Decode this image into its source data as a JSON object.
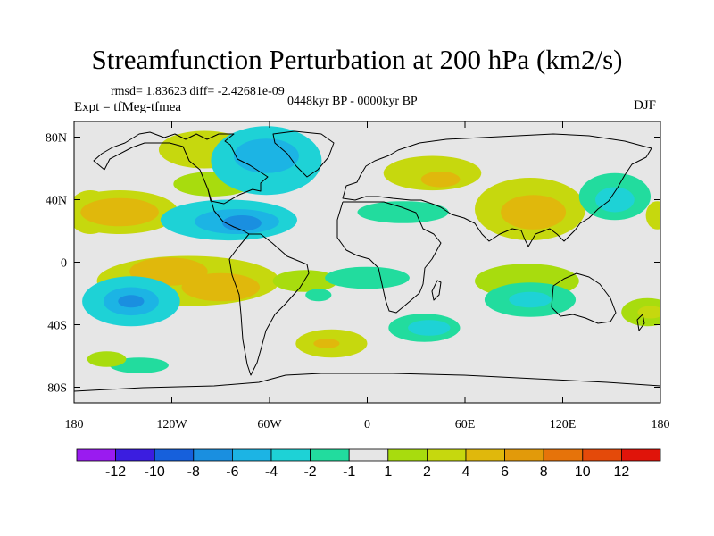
{
  "header": {
    "title": "Streamfunction Perturbation at 200 hPa (km2/s)",
    "stats": "rmsd= 1.83623 diff= -2.42681e-09",
    "expt": "Expt = tfMeg-tfmea",
    "period": "0448kyr BP - 0000kyr BP",
    "season": "DJF"
  },
  "chart_data": {
    "type": "heatmap",
    "title": "Streamfunction Perturbation at 200 hPa (km2/s)",
    "xlim": [
      -180,
      180
    ],
    "ylim": [
      -90,
      90
    ],
    "x_ticks": [
      {
        "value": -180,
        "label": "180"
      },
      {
        "value": -120,
        "label": "120W"
      },
      {
        "value": -60,
        "label": "60W"
      },
      {
        "value": 0,
        "label": "0"
      },
      {
        "value": 60,
        "label": "60E"
      },
      {
        "value": 120,
        "label": "120E"
      },
      {
        "value": 180,
        "label": "180"
      }
    ],
    "y_ticks": [
      {
        "value": 80,
        "label": "80N"
      },
      {
        "value": 40,
        "label": "40N"
      },
      {
        "value": 0,
        "label": "0"
      },
      {
        "value": -40,
        "label": "40S"
      },
      {
        "value": -80,
        "label": "80S"
      }
    ],
    "colorbar": {
      "labels": [
        "-12",
        "-10",
        "-8",
        "-6",
        "-4",
        "-2",
        "-1",
        "1",
        "2",
        "4",
        "6",
        "8",
        "10",
        "12"
      ],
      "colors": [
        "#9a1bf0",
        "#3b1de0",
        "#1660dc",
        "#1a8fe0",
        "#1cb4e4",
        "#1ed2d6",
        "#22dc9e",
        "#e6e6e6",
        "#a8dc0e",
        "#c6d80e",
        "#e0b80c",
        "#e29a0a",
        "#e6730a",
        "#e44a0a",
        "#e0140a"
      ]
    },
    "anomalies": [
      {
        "lon": -100,
        "lat": 72,
        "rx": 28,
        "ry": 12,
        "level": 2
      },
      {
        "lon": -95,
        "lat": 50,
        "rx": 24,
        "ry": 8,
        "level": 1
      },
      {
        "lon": -170,
        "lat": 32,
        "rx": 14,
        "ry": 14,
        "level": 2
      },
      {
        "lon": -152,
        "lat": 32,
        "rx": 36,
        "ry": 14,
        "level": 2
      },
      {
        "lon": -152,
        "lat": 32,
        "rx": 24,
        "ry": 9,
        "level": 3
      },
      {
        "lon": -62,
        "lat": 65,
        "rx": 34,
        "ry": 22,
        "level": -2
      },
      {
        "lon": -62,
        "lat": 68,
        "rx": 20,
        "ry": 11,
        "level": -3
      },
      {
        "lon": -85,
        "lat": 27,
        "rx": 42,
        "ry": 13,
        "level": -2
      },
      {
        "lon": -80,
        "lat": 26,
        "rx": 26,
        "ry": 8,
        "level": -3
      },
      {
        "lon": -77,
        "lat": 25,
        "rx": 12,
        "ry": 5,
        "level": -4
      },
      {
        "lon": -110,
        "lat": -12,
        "rx": 56,
        "ry": 16,
        "level": 2
      },
      {
        "lon": -122,
        "lat": -6,
        "rx": 24,
        "ry": 9,
        "level": 3
      },
      {
        "lon": -90,
        "lat": -16,
        "rx": 24,
        "ry": 9,
        "level": 3
      },
      {
        "lon": -145,
        "lat": -25,
        "rx": 30,
        "ry": 16,
        "level": -2
      },
      {
        "lon": -145,
        "lat": -25,
        "rx": 17,
        "ry": 9,
        "level": -3
      },
      {
        "lon": -145,
        "lat": -25,
        "rx": 8,
        "ry": 4,
        "level": -4
      },
      {
        "lon": -38,
        "lat": -12,
        "rx": 20,
        "ry": 7,
        "level": 1
      },
      {
        "lon": -30,
        "lat": -21,
        "rx": 8,
        "ry": 4,
        "level": -1
      },
      {
        "lon": -22,
        "lat": -52,
        "rx": 22,
        "ry": 9,
        "level": 2
      },
      {
        "lon": -25,
        "lat": -52,
        "rx": 8,
        "ry": 3,
        "level": 3
      },
      {
        "lon": -140,
        "lat": -66,
        "rx": 18,
        "ry": 5,
        "level": -1
      },
      {
        "lon": 40,
        "lat": 57,
        "rx": 30,
        "ry": 11,
        "level": 2
      },
      {
        "lon": 45,
        "lat": 53,
        "rx": 12,
        "ry": 5,
        "level": 3
      },
      {
        "lon": 100,
        "lat": 34,
        "rx": 34,
        "ry": 20,
        "level": 2
      },
      {
        "lon": 102,
        "lat": 32,
        "rx": 20,
        "ry": 11,
        "level": 3
      },
      {
        "lon": 22,
        "lat": 32,
        "rx": 28,
        "ry": 7,
        "level": -1
      },
      {
        "lon": 152,
        "lat": 42,
        "rx": 22,
        "ry": 15,
        "level": -1
      },
      {
        "lon": 152,
        "lat": 40,
        "rx": 12,
        "ry": 8,
        "level": -2
      },
      {
        "lon": 178,
        "lat": 30,
        "rx": 7,
        "ry": 9,
        "level": 2
      },
      {
        "lon": 0,
        "lat": -10,
        "rx": 26,
        "ry": 7,
        "level": -1
      },
      {
        "lon": 35,
        "lat": -42,
        "rx": 22,
        "ry": 9,
        "level": -1
      },
      {
        "lon": 38,
        "lat": -42,
        "rx": 13,
        "ry": 5,
        "level": -2
      },
      {
        "lon": 98,
        "lat": -12,
        "rx": 32,
        "ry": 11,
        "level": 1
      },
      {
        "lon": 100,
        "lat": -24,
        "rx": 28,
        "ry": 11,
        "level": -1
      },
      {
        "lon": 100,
        "lat": -24,
        "rx": 13,
        "ry": 5,
        "level": -2
      },
      {
        "lon": 172,
        "lat": -32,
        "rx": 16,
        "ry": 9,
        "level": 1
      },
      {
        "lon": 174,
        "lat": -32,
        "rx": 8,
        "ry": 4,
        "level": 2
      },
      {
        "lon": -160,
        "lat": -62,
        "rx": 12,
        "ry": 5,
        "level": 1
      }
    ]
  }
}
